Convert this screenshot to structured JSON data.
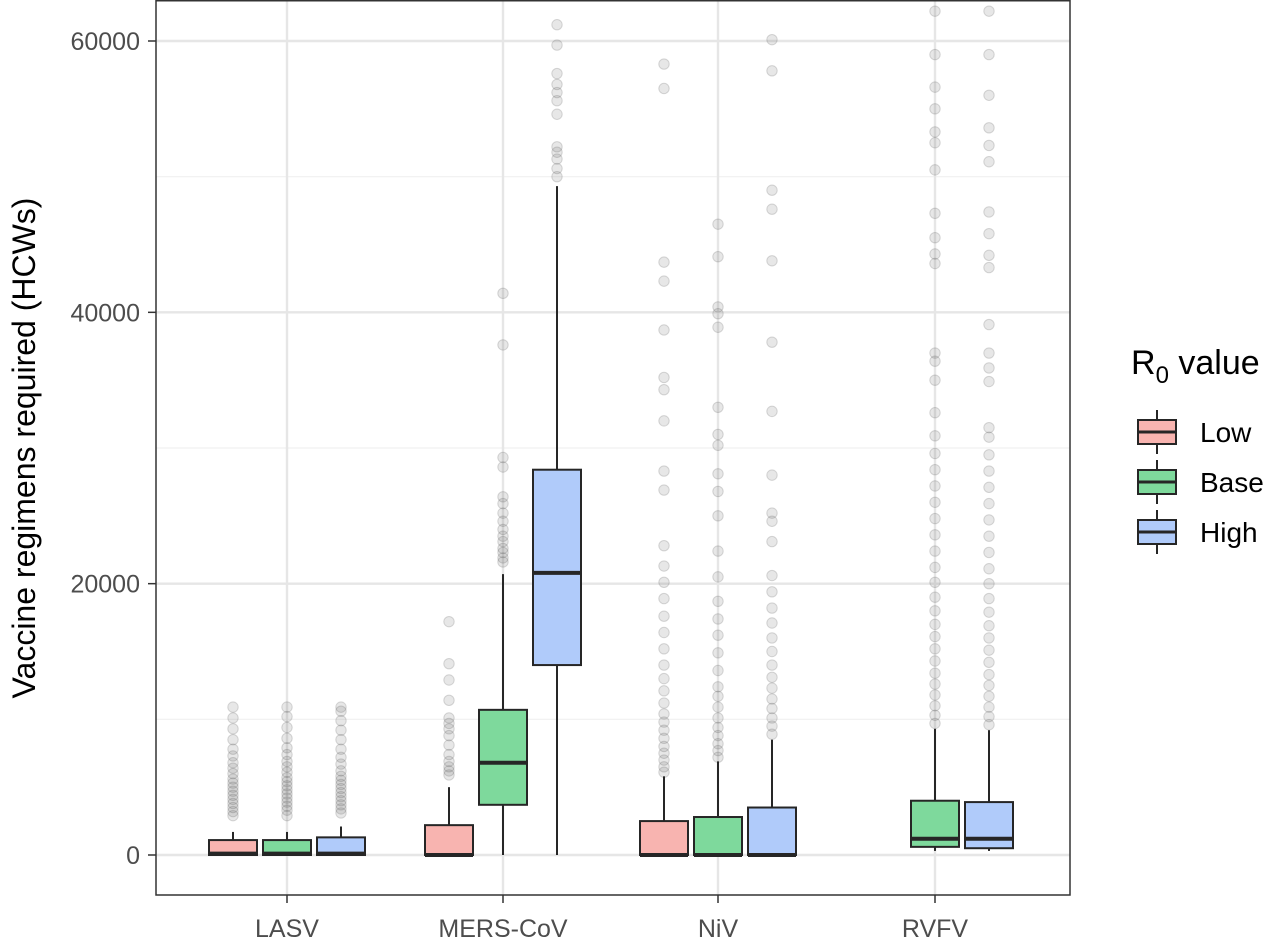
{
  "chart_data": {
    "type": "box",
    "title": "",
    "xlabel": "",
    "ylabel": "Vaccine regimens required (HCWs)",
    "ylim": [
      -3000,
      63000
    ],
    "y_ticks": [
      0,
      20000,
      40000,
      60000
    ],
    "y_tick_labels": [
      "0",
      "20000",
      "40000",
      "60000"
    ],
    "grid": true,
    "categories": [
      "LASV",
      "MERS-CoV",
      "NiV",
      "RVFV"
    ],
    "legend": {
      "title_main": "R",
      "title_sub": "0",
      "title_rest": " value",
      "placement": "right",
      "entries": [
        {
          "key": "low",
          "label": "Low",
          "color": "#f8b4b0"
        },
        {
          "key": "base",
          "label": "Base",
          "color": "#7ed99c"
        },
        {
          "key": "high",
          "label": "High",
          "color": "#b0cbfa"
        }
      ]
    },
    "colors": {
      "low": "#f8b4b0",
      "base": "#7ed99c",
      "high": "#b0cbfa",
      "outlier": "#555555",
      "line": "#262626"
    },
    "series": [
      {
        "category": "LASV",
        "group": "low",
        "q1": 0,
        "median": 100,
        "q3": 1100,
        "whisker_low": 0,
        "whisker_high": 1700,
        "outliers": [
          2900,
          3200,
          3500,
          3800,
          4100,
          4400,
          4700,
          5000,
          5300,
          5600,
          6000,
          6400,
          6800,
          7300,
          7800,
          8500,
          9300,
          10100,
          10900
        ]
      },
      {
        "category": "LASV",
        "group": "base",
        "q1": 0,
        "median": 100,
        "q3": 1100,
        "whisker_low": 0,
        "whisker_high": 1700,
        "outliers": [
          2900,
          3300,
          3600,
          3900,
          4200,
          4500,
          4800,
          5100,
          5400,
          5700,
          6100,
          6500,
          6900,
          7400,
          7900,
          8600,
          9400,
          10200,
          10900
        ]
      },
      {
        "category": "LASV",
        "group": "high",
        "q1": 0,
        "median": 100,
        "q3": 1300,
        "whisker_low": 0,
        "whisker_high": 2100,
        "outliers": [
          3100,
          3400,
          3700,
          4000,
          4300,
          4600,
          4900,
          5200,
          5500,
          5800,
          6200,
          6700,
          7200,
          7800,
          8500,
          9200,
          9900,
          10600,
          10900
        ]
      },
      {
        "category": "MERS-CoV",
        "group": "low",
        "q1": 0,
        "median": 0,
        "q3": 2200,
        "whisker_low": 0,
        "whisker_high": 5000,
        "outliers": [
          5900,
          6200,
          6500,
          6900,
          7400,
          8100,
          8800,
          9300,
          9700,
          10100,
          11400,
          12900,
          14100,
          17200
        ]
      },
      {
        "category": "MERS-CoV",
        "group": "base",
        "q1": 3700,
        "median": 6800,
        "q3": 10700,
        "whisker_low": 0,
        "whisker_high": 20700,
        "outliers": [
          21600,
          21900,
          22300,
          22600,
          23100,
          23500,
          24000,
          24600,
          25200,
          25900,
          26400,
          28600,
          29300,
          37600,
          41400
        ]
      },
      {
        "category": "MERS-CoV",
        "group": "high",
        "q1": 14000,
        "median": 20800,
        "q3": 28400,
        "whisker_low": 0,
        "whisker_high": 49300,
        "outliers": [
          50000,
          50600,
          51300,
          51800,
          52200,
          54600,
          55600,
          56200,
          56800,
          57600,
          59700,
          61200
        ]
      },
      {
        "category": "NiV",
        "group": "low",
        "q1": 0,
        "median": 0,
        "q3": 2500,
        "whisker_low": 0,
        "whisker_high": 5800,
        "outliers": [
          6100,
          6500,
          7000,
          7500,
          8000,
          8600,
          9200,
          9800,
          10400,
          11200,
          12100,
          13000,
          14000,
          15200,
          16400,
          17600,
          18900,
          20100,
          21300,
          22800,
          26900,
          28300,
          32000,
          34300,
          35200,
          38700,
          42300,
          43700,
          56500,
          58300
        ]
      },
      {
        "category": "NiV",
        "group": "base",
        "q1": 0,
        "median": 0,
        "q3": 2800,
        "whisker_low": 0,
        "whisker_high": 6900,
        "outliers": [
          7200,
          7700,
          8200,
          8800,
          9400,
          10100,
          10900,
          11700,
          12400,
          13600,
          14900,
          16200,
          17400,
          18700,
          20500,
          22400,
          25000,
          26800,
          28100,
          30200,
          31000,
          33000,
          38900,
          39900,
          40400,
          44100,
          46500
        ]
      },
      {
        "category": "NiV",
        "group": "high",
        "q1": 0,
        "median": 0,
        "q3": 3500,
        "whisker_low": 0,
        "whisker_high": 8500,
        "outliers": [
          8900,
          9500,
          10100,
          10800,
          11500,
          12300,
          13100,
          14000,
          15000,
          16000,
          17100,
          18200,
          19400,
          20600,
          23100,
          24600,
          25200,
          28000,
          32700,
          37800,
          43800,
          47600,
          49000,
          57800,
          60100
        ]
      },
      {
        "category": "RVFV",
        "group": "base",
        "q1": 600,
        "median": 1200,
        "q3": 4000,
        "whisker_low": 300,
        "whisker_high": 9300,
        "outliers": [
          9700,
          10300,
          11000,
          11800,
          12600,
          13400,
          14300,
          15200,
          16100,
          17000,
          18000,
          19000,
          20100,
          21200,
          22400,
          23600,
          24800,
          26000,
          27200,
          28400,
          29600,
          30900,
          32600,
          35000,
          36400,
          37000,
          43600,
          44300,
          45500,
          47300,
          50500,
          52500,
          53300,
          55000,
          56600,
          59000,
          62200
        ]
      },
      {
        "category": "RVFV",
        "group": "high",
        "q1": 500,
        "median": 1200,
        "q3": 3900,
        "whisker_low": 300,
        "whisker_high": 9200,
        "outliers": [
          9600,
          10200,
          10900,
          11700,
          12500,
          13300,
          14200,
          15100,
          16000,
          16900,
          17900,
          18900,
          20000,
          21100,
          22300,
          23500,
          24700,
          25900,
          27100,
          28300,
          29500,
          30800,
          31500,
          34900,
          35900,
          37000,
          39100,
          43300,
          44200,
          45800,
          47400,
          51100,
          52300,
          53600,
          56000,
          59000,
          62200
        ]
      }
    ]
  }
}
